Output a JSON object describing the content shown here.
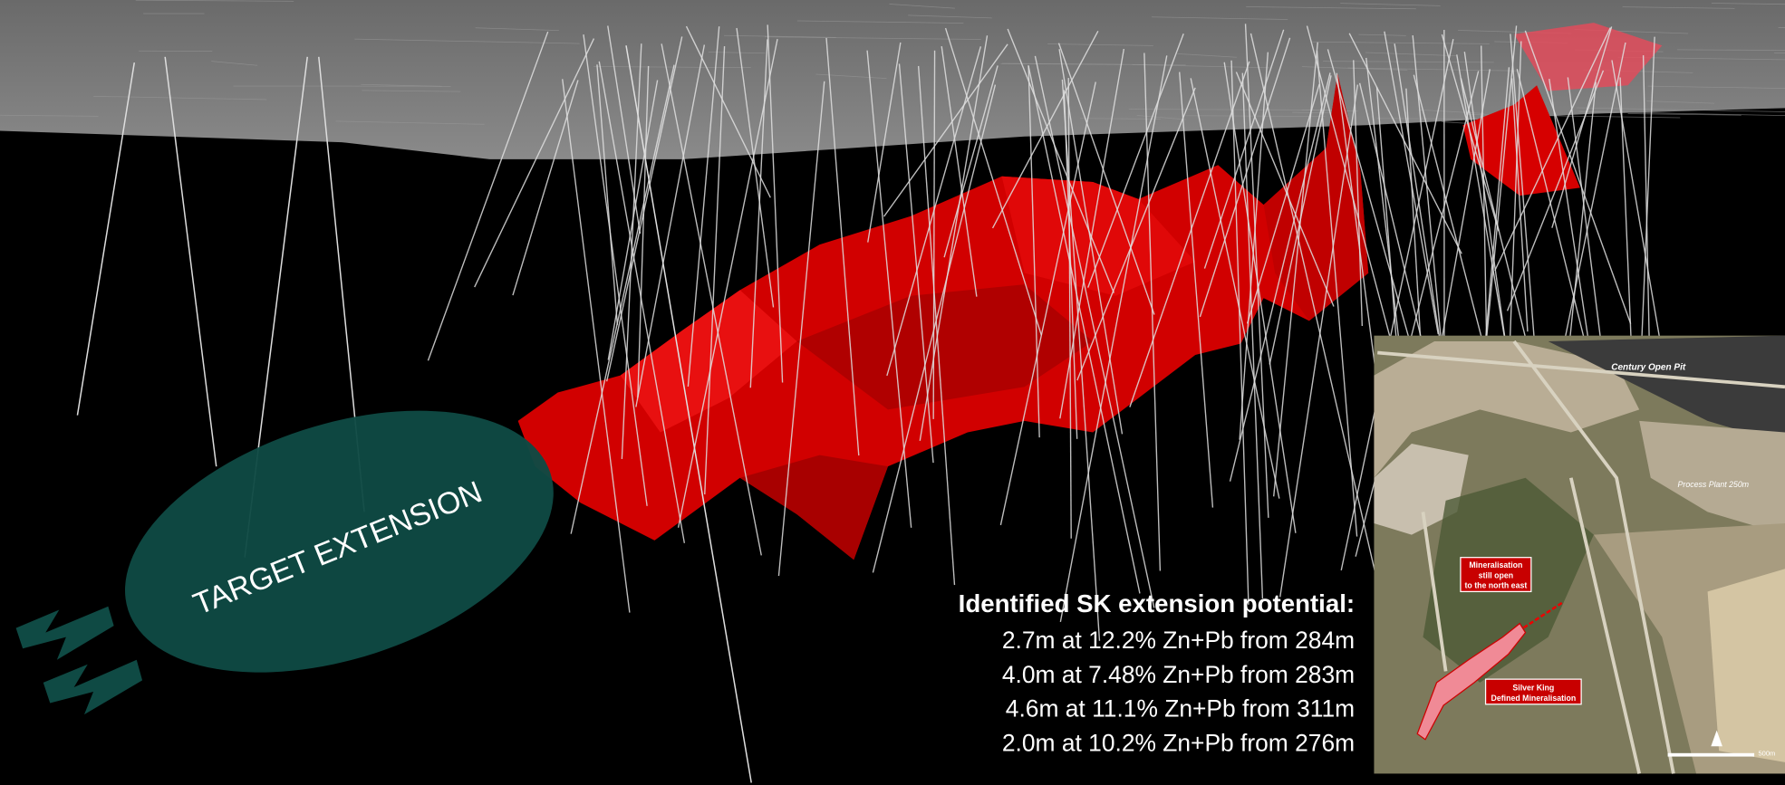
{
  "slide": {
    "target_label": "TARGET EXTENSION",
    "results": {
      "heading": "Identified SK extension potential:",
      "lines": [
        "2.7m at 12.2% Zn+Pb from 284m",
        "4.0m at 7.48% Zn+Pb from 283m",
        "4.6m at 11.1% Zn+Pb from 311m",
        "2.0m at 10.2% Zn+Pb from 276m"
      ]
    },
    "inset_map": {
      "pit_label": "Century Open Pit",
      "plant_label": "Process Plant 250m",
      "open_label": [
        "Mineralisation",
        "still open",
        "to the north east"
      ],
      "defined_label": [
        "Silver King",
        "Defined Mineralisation"
      ],
      "scale_label": "500m"
    }
  }
}
